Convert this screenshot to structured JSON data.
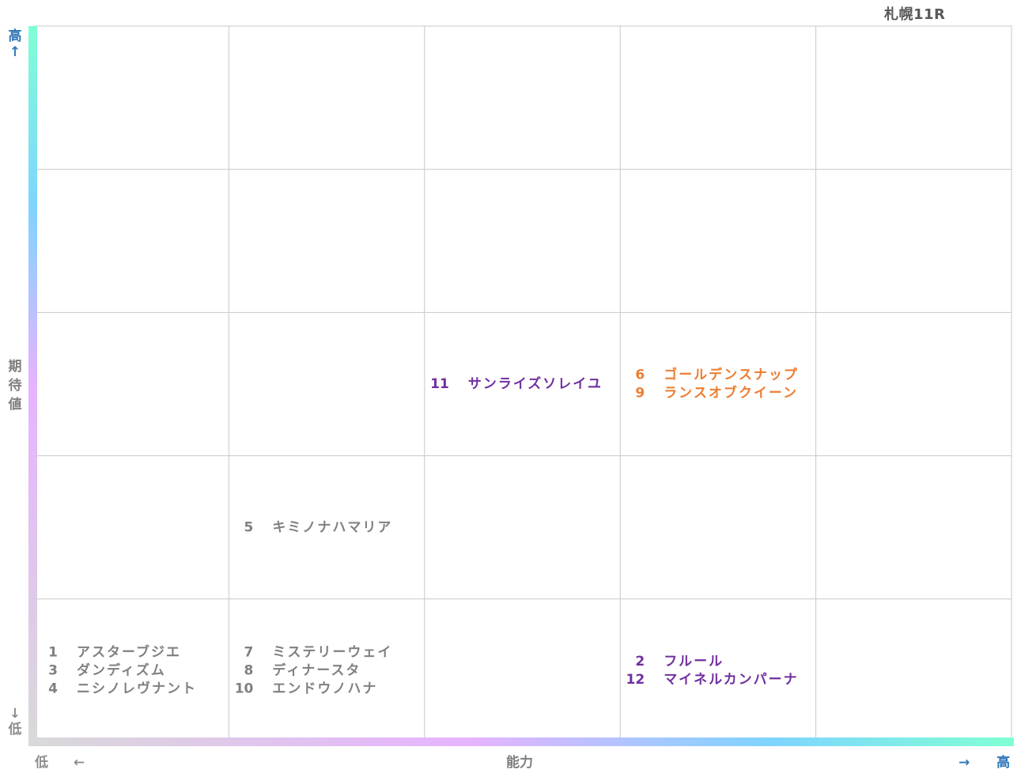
{
  "race_title": "札幌11R",
  "axes": {
    "y_label": "期待値",
    "y_high": "高",
    "y_low": "低",
    "y_up_arrow": "↑",
    "y_down_arrow": "↓",
    "x_label": "能力",
    "x_low": "低",
    "x_high": "高",
    "x_left_arrow": "←",
    "x_right_arrow": "→"
  },
  "colors": {
    "grid": "#c8c8c8",
    "gray_text": "#808080",
    "purple_text": "#7030a0",
    "orange_text": "#ed7d31",
    "blue_text": "#2e75b6",
    "axis_gradient_top": "#7fffd4",
    "axis_gradient_mid": "#e6b3ff",
    "axis_gradient_bottom": "#d9d9d9"
  },
  "chart_data": {
    "type": "table",
    "columns": 5,
    "rows": 5,
    "x_axis": "能力",
    "y_axis": "期待値",
    "cells": [
      {
        "col": 3,
        "row": 3,
        "color": "purple",
        "entries": [
          {
            "number": "11",
            "name": "サンライズソレイユ"
          }
        ]
      },
      {
        "col": 4,
        "row": 3,
        "color": "orange",
        "entries": [
          {
            "number": "6",
            "name": "ゴールデンスナップ"
          },
          {
            "number": "9",
            "name": "ランスオブクイーン"
          }
        ]
      },
      {
        "col": 2,
        "row": 2,
        "color": "gray",
        "entries": [
          {
            "number": "5",
            "name": "キミノナハマリア"
          }
        ]
      },
      {
        "col": 1,
        "row": 1,
        "color": "gray",
        "entries": [
          {
            "number": "1",
            "name": "アスターブジエ"
          },
          {
            "number": "3",
            "name": "ダンディズム"
          },
          {
            "number": "4",
            "name": "ニシノレヴナント"
          }
        ]
      },
      {
        "col": 2,
        "row": 1,
        "color": "gray",
        "entries": [
          {
            "number": "7",
            "name": "ミステリーウェイ"
          },
          {
            "number": "8",
            "name": "ディナースタ"
          },
          {
            "number": "10",
            "name": "エンドウノハナ"
          }
        ]
      },
      {
        "col": 4,
        "row": 1,
        "color": "purple",
        "entries": [
          {
            "number": "2",
            "name": "フルール"
          },
          {
            "number": "12",
            "name": "マイネルカンパーナ"
          }
        ]
      }
    ]
  }
}
